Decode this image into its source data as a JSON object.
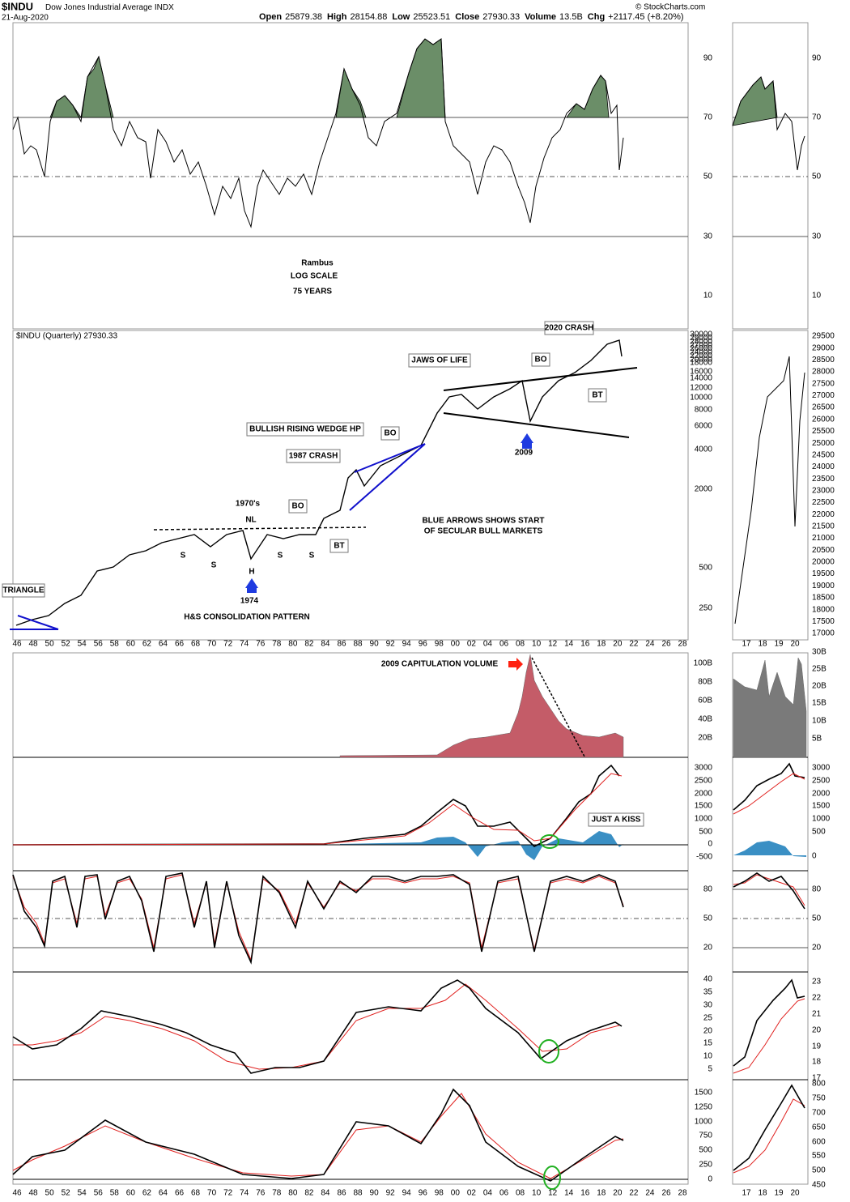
{
  "header": {
    "symbol": "$INDU",
    "name": "Dow Jones Industrial Average",
    "exchange": "INDX",
    "date": "21-Aug-2020",
    "quote": [
      {
        "label": "Open",
        "value": "25879.38"
      },
      {
        "label": "High",
        "value": "28154.88"
      },
      {
        "label": "Low",
        "value": "25523.51"
      },
      {
        "label": "Close",
        "value": "27930.33"
      },
      {
        "label": "Volume",
        "value": "13.5B"
      },
      {
        "label": "Chg",
        "value": "+2117.45 (+8.20%)"
      }
    ],
    "source": "© StockCharts.com"
  },
  "panels": [
    {
      "ticks": [
        "90",
        "70",
        "50",
        "30",
        "10"
      ],
      "mini_ticks": [
        "90",
        "70",
        "50",
        "30",
        "10"
      ],
      "annotations": [
        {
          "text": "Rambus",
          "boxed": false
        },
        {
          "text": "LOG SCALE",
          "boxed": false
        },
        {
          "text": "75 YEARS",
          "boxed": false
        }
      ]
    },
    {
      "title": "$INDU (Quarterly) 27930.33",
      "ticks": [
        "30000",
        "29000",
        "28000",
        "27000",
        "26000",
        "24000",
        "22000",
        "20000",
        "18000",
        "16000",
        "14000",
        "12000",
        "10000",
        "8000",
        "6000",
        "4000",
        "2000",
        "500",
        "250"
      ],
      "mini_ticks": [
        "29500",
        "29000",
        "28500",
        "28000",
        "27500",
        "27000",
        "26500",
        "26000",
        "25500",
        "25000",
        "24500",
        "24000",
        "23500",
        "23000",
        "22500",
        "22000",
        "21500",
        "21000",
        "20500",
        "20000",
        "19500",
        "19000",
        "18500",
        "18000",
        "17500",
        "17000"
      ],
      "annotations": [
        {
          "text": "2020 CRASH",
          "boxed": true
        },
        {
          "text": "JAWS OF LIFE",
          "boxed": true
        },
        {
          "text": "BO",
          "boxed": true
        },
        {
          "text": "BT",
          "boxed": true
        },
        {
          "text": "BULLISH RISING WEDGE HP",
          "boxed": true
        },
        {
          "text": "BO",
          "boxed": true
        },
        {
          "text": "1987 CRASH",
          "boxed": true
        },
        {
          "text": "2009",
          "boxed": false
        },
        {
          "text": "1970's",
          "boxed": false
        },
        {
          "text": "NL",
          "boxed": false
        },
        {
          "text": "BO",
          "boxed": true
        },
        {
          "text": "BT",
          "boxed": true
        },
        {
          "text": "BLUE ARROWS SHOWS START",
          "boxed": false
        },
        {
          "text": "OF SECULAR BULL MARKETS",
          "boxed": false
        },
        {
          "text": "S",
          "boxed": false
        },
        {
          "text": "S",
          "boxed": false
        },
        {
          "text": "H",
          "boxed": false
        },
        {
          "text": "S",
          "boxed": false
        },
        {
          "text": "S",
          "boxed": false
        },
        {
          "text": "1974",
          "boxed": false
        },
        {
          "text": "TRIANGLE",
          "boxed": true
        },
        {
          "text": "H&S CONSOLIDATION PATTERN",
          "boxed": false
        }
      ]
    },
    {
      "ticks": [
        "100B",
        "80B",
        "60B",
        "40B",
        "20B"
      ],
      "mini_ticks": [
        "30B",
        "25B",
        "20B",
        "15B",
        "10B",
        "5B"
      ],
      "annotations": [
        {
          "text": "2009 CAPITULATION VOLUME",
          "boxed": false
        }
      ]
    },
    {
      "ticks": [
        "3000",
        "2500",
        "2000",
        "1500",
        "1000",
        "500",
        "0",
        "-500"
      ],
      "mini_ticks": [
        "3000",
        "2500",
        "2000",
        "1500",
        "1000",
        "500",
        "0"
      ],
      "annotations": [
        {
          "text": "JUST A KISS",
          "boxed": true
        }
      ]
    },
    {
      "ticks": [
        "80",
        "50",
        "20"
      ],
      "mini_ticks": [
        "80",
        "50",
        "20"
      ],
      "annotations": []
    },
    {
      "ticks": [
        "40",
        "35",
        "30",
        "25",
        "20",
        "15",
        "10",
        "5"
      ],
      "mini_ticks": [
        "23",
        "22",
        "21",
        "20",
        "19",
        "18",
        "17"
      ],
      "annotations": []
    },
    {
      "ticks": [
        "1500",
        "1250",
        "1000",
        "750",
        "500",
        "250",
        "0"
      ],
      "mini_ticks": [
        "800",
        "750",
        "700",
        "650",
        "600",
        "550",
        "500",
        "450"
      ],
      "annotations": []
    }
  ],
  "x_axis": {
    "labels": [
      "46",
      "48",
      "50",
      "52",
      "54",
      "56",
      "58",
      "60",
      "62",
      "64",
      "66",
      "68",
      "70",
      "72",
      "74",
      "76",
      "78",
      "80",
      "82",
      "84",
      "86",
      "88",
      "90",
      "92",
      "94",
      "96",
      "98",
      "00",
      "02",
      "04",
      "06",
      "08",
      "10",
      "12",
      "14",
      "16",
      "18",
      "20",
      "22",
      "24",
      "26",
      "28"
    ],
    "mini_labels": [
      "17",
      "18",
      "19",
      "20"
    ]
  }
}
